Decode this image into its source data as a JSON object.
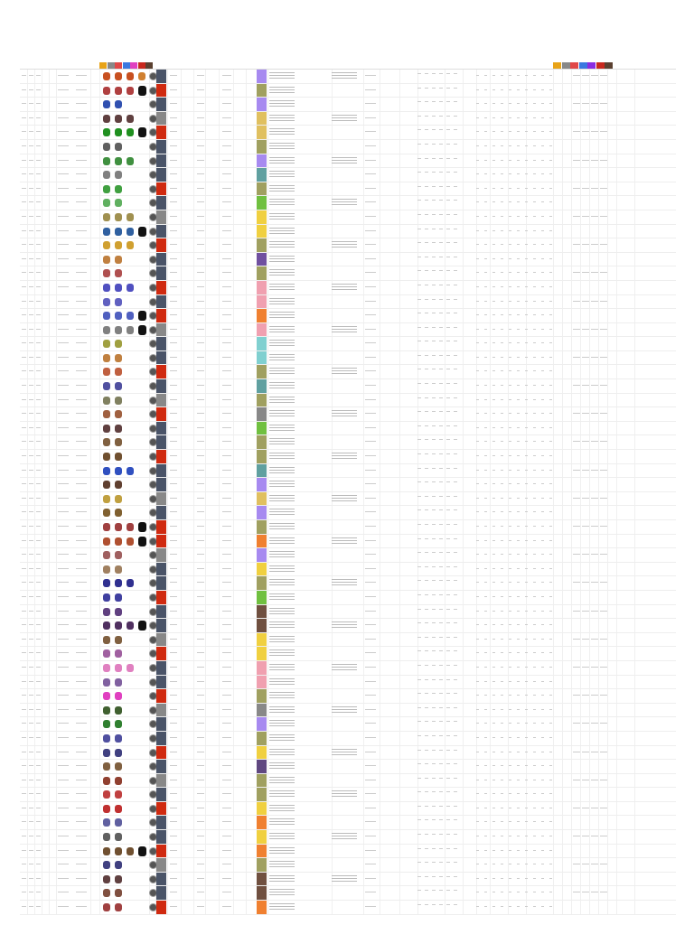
{
  "header": {
    "swatches": [
      "#e8a317",
      "#888888",
      "#e04848",
      "#3a78e0",
      "#e040c0",
      "#c8281e",
      "#5a4030"
    ],
    "legend_swatches": [
      "#e8a317",
      "#888888",
      "#e04848",
      "#3a78e0",
      "#8a2be2",
      "#c8281e",
      "#5a4030"
    ]
  },
  "rows": [
    {
      "t1": "#4a5468",
      "t2": "#a78af0",
      "sp": [
        "#c85020",
        "#c85020",
        "#c85020",
        "#d08030"
      ]
    },
    {
      "t1": "#d02a10",
      "t2": "#a0a060",
      "sp": [
        "#b04040",
        "#b04040",
        "#b04040",
        "#b04040"
      ],
      "dark": true
    },
    {
      "t1": "#4a5468",
      "t2": "#a78af0",
      "sp": [
        "#3050b0",
        "#3050b0"
      ]
    },
    {
      "t1": "#888888",
      "t2": "#e0c060",
      "sp": [
        "#604040",
        "#604040",
        "#604040"
      ]
    },
    {
      "t1": "#d02a10",
      "t2": "#e0c060",
      "sp": [
        "#209020",
        "#209020",
        "#209020"
      ],
      "dark": true
    },
    {
      "t1": "#4a5468",
      "t2": "#a0a060",
      "sp": [
        "#606060",
        "#606060"
      ]
    },
    {
      "t1": "#4a5468",
      "t2": "#a78af0",
      "sp": [
        "#409040",
        "#409040",
        "#409040"
      ]
    },
    {
      "t1": "#4a5468",
      "t2": "#60a0a0",
      "sp": [
        "#808080",
        "#808080"
      ]
    },
    {
      "t1": "#d02a10",
      "t2": "#a0a060",
      "sp": [
        "#40a040",
        "#40a040"
      ]
    },
    {
      "t1": "#4a5468",
      "t2": "#70c040",
      "sp": [
        "#60b060",
        "#60b060"
      ]
    },
    {
      "t1": "#888888",
      "t2": "#f0d040",
      "sp": [
        "#a09050",
        "#a09050",
        "#a09050"
      ]
    },
    {
      "t1": "#4a5468",
      "t2": "#f0d040",
      "sp": [
        "#3060a0",
        "#3060a0",
        "#3060a0"
      ],
      "dark": true
    },
    {
      "t1": "#d02a10",
      "t2": "#a0a060",
      "sp": [
        "#d0a030",
        "#d0a030",
        "#d0a030"
      ]
    },
    {
      "t1": "#4a5468",
      "t2": "#7050a0",
      "sp": [
        "#c08040",
        "#c08040"
      ]
    },
    {
      "t1": "#4a5468",
      "t2": "#a0a060",
      "sp": [
        "#b05050",
        "#b05050"
      ]
    },
    {
      "t1": "#d02a10",
      "t2": "#f0a0b0",
      "sp": [
        "#5050c0",
        "#5050c0",
        "#5050c0"
      ]
    },
    {
      "t1": "#4a5468",
      "t2": "#f0a0b0",
      "sp": [
        "#6060c0",
        "#6060c0"
      ]
    },
    {
      "t1": "#d02a10",
      "t2": "#f08030",
      "sp": [
        "#5060c0",
        "#5060c0",
        "#5060c0"
      ],
      "dark": true
    },
    {
      "t1": "#888888",
      "t2": "#f0a0b0",
      "sp": [
        "#808080",
        "#808080",
        "#808080"
      ],
      "dark": true
    },
    {
      "t1": "#4a5468",
      "t2": "#80d0d0",
      "sp": [
        "#a0a040",
        "#a0a040"
      ]
    },
    {
      "t1": "#4a5468",
      "t2": "#80d0d0",
      "sp": [
        "#c08040",
        "#c08040"
      ]
    },
    {
      "t1": "#d02a10",
      "t2": "#a0a060",
      "sp": [
        "#c06040",
        "#c06040"
      ]
    },
    {
      "t1": "#4a5468",
      "t2": "#60a0a0",
      "sp": [
        "#5050a0",
        "#5050a0"
      ]
    },
    {
      "t1": "#888888",
      "t2": "#a0a060",
      "sp": [
        "#808060",
        "#808060"
      ]
    },
    {
      "t1": "#d02a10",
      "t2": "#888888",
      "sp": [
        "#a06040",
        "#a06040"
      ]
    },
    {
      "t1": "#4a5468",
      "t2": "#70c040",
      "sp": [
        "#604040",
        "#604040"
      ]
    },
    {
      "t1": "#4a5468",
      "t2": "#a0a060",
      "sp": [
        "#806040",
        "#806040"
      ]
    },
    {
      "t1": "#d02a10",
      "t2": "#a0a060",
      "sp": [
        "#705030",
        "#705030"
      ]
    },
    {
      "t1": "#4a5468",
      "t2": "#60a0a0",
      "sp": [
        "#3050c0",
        "#3050c0",
        "#3050c0"
      ]
    },
    {
      "t1": "#4a5468",
      "t2": "#a78af0",
      "sp": [
        "#604030",
        "#604030"
      ]
    },
    {
      "t1": "#888888",
      "t2": "#e0c060",
      "sp": [
        "#c0a040",
        "#c0a040"
      ]
    },
    {
      "t1": "#4a5468",
      "t2": "#a78af0",
      "sp": [
        "#806030",
        "#806030"
      ]
    },
    {
      "t1": "#d02a10",
      "t2": "#a0a060",
      "sp": [
        "#a04040",
        "#a04040",
        "#a04040"
      ],
      "dark": true
    },
    {
      "t1": "#d02a10",
      "t2": "#f08030",
      "sp": [
        "#b05030",
        "#b05030",
        "#b05030"
      ],
      "dark": true
    },
    {
      "t1": "#888888",
      "t2": "#a78af0",
      "sp": [
        "#a06060",
        "#a06060"
      ]
    },
    {
      "t1": "#4a5468",
      "t2": "#f0d040",
      "sp": [
        "#a08060",
        "#a08060"
      ]
    },
    {
      "t1": "#4a5468",
      "t2": "#a0a060",
      "sp": [
        "#303090",
        "#303090",
        "#303090"
      ]
    },
    {
      "t1": "#d02a10",
      "t2": "#70c040",
      "sp": [
        "#4040a0",
        "#4040a0"
      ]
    },
    {
      "t1": "#4a5468",
      "t2": "#705040",
      "sp": [
        "#604080",
        "#604080"
      ]
    },
    {
      "t1": "#4a5468",
      "t2": "#705040",
      "sp": [
        "#503060",
        "#503060",
        "#503060"
      ],
      "dark": true
    },
    {
      "t1": "#888888",
      "t2": "#f0d040",
      "sp": [
        "#806040",
        "#806040"
      ]
    },
    {
      "t1": "#d02a10",
      "t2": "#f0d040",
      "sp": [
        "#a060a0",
        "#a060a0"
      ]
    },
    {
      "t1": "#4a5468",
      "t2": "#f0a0b0",
      "sp": [
        "#e080c0",
        "#e080c0",
        "#e080c0"
      ]
    },
    {
      "t1": "#4a5468",
      "t2": "#f0a0b0",
      "sp": [
        "#8060a0",
        "#8060a0"
      ]
    },
    {
      "t1": "#d02a10",
      "t2": "#a0a060",
      "sp": [
        "#e040c0",
        "#e040c0"
      ]
    },
    {
      "t1": "#888888",
      "t2": "#888888",
      "sp": [
        "#406030",
        "#406030"
      ]
    },
    {
      "t1": "#4a5468",
      "t2": "#a78af0",
      "sp": [
        "#308030",
        "#308030"
      ]
    },
    {
      "t1": "#4a5468",
      "t2": "#a0a060",
      "sp": [
        "#5050a0",
        "#5050a0"
      ]
    },
    {
      "t1": "#d02a10",
      "t2": "#f0d040",
      "sp": [
        "#404080",
        "#404080"
      ]
    },
    {
      "t1": "#4a5468",
      "t2": "#604880",
      "sp": [
        "#806040",
        "#806040"
      ]
    },
    {
      "t1": "#888888",
      "t2": "#a0a060",
      "sp": [
        "#904030",
        "#904030"
      ]
    },
    {
      "t1": "#4a5468",
      "t2": "#a0a060",
      "sp": [
        "#c04040",
        "#c04040"
      ]
    },
    {
      "t1": "#d02a10",
      "t2": "#f0d040",
      "sp": [
        "#c03030",
        "#c03030"
      ]
    },
    {
      "t1": "#4a5468",
      "t2": "#f08030",
      "sp": [
        "#6060a0",
        "#6060a0"
      ]
    },
    {
      "t1": "#4a5468",
      "t2": "#f0d040",
      "sp": [
        "#606060",
        "#606060"
      ]
    },
    {
      "t1": "#d02a10",
      "t2": "#f08030",
      "sp": [
        "#705030",
        "#705030",
        "#705030"
      ],
      "dark": true
    },
    {
      "t1": "#888888",
      "t2": "#a0a060",
      "sp": [
        "#404080",
        "#404080"
      ]
    },
    {
      "t1": "#4a5468",
      "t2": "#705040",
      "sp": [
        "#604040",
        "#604040"
      ]
    },
    {
      "t1": "#4a5468",
      "t2": "#705040",
      "sp": [
        "#805040",
        "#805040"
      ]
    },
    {
      "t1": "#d02a10",
      "t2": "#f08030",
      "sp": [
        "#a04040",
        "#a04040"
      ]
    }
  ]
}
